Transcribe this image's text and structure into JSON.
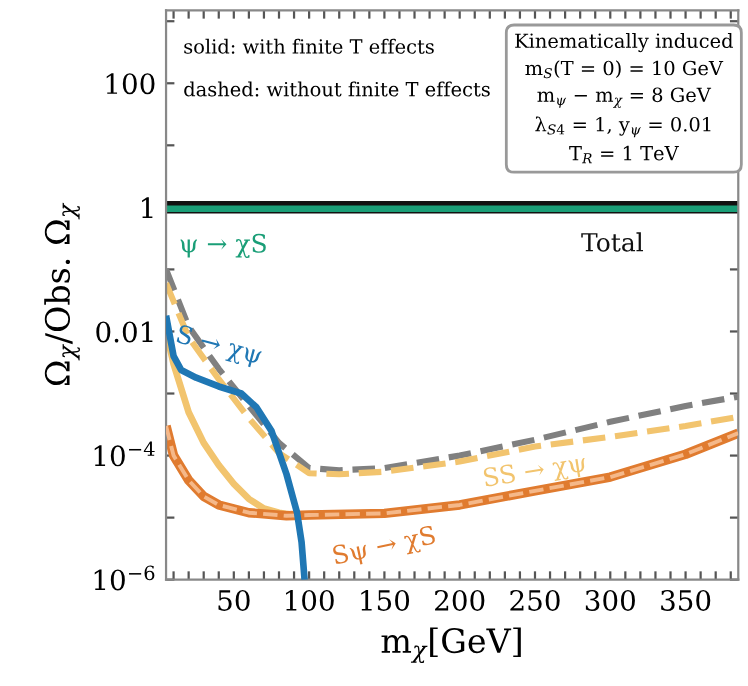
{
  "chart_data": {
    "type": "line",
    "xlabel": "m$_{χ}$[GeV]",
    "ylabel": "Ω$_{χ}$/Obs. Ω$_{χ}$",
    "log": "y",
    "xlim": [
      5,
      385
    ],
    "ylim": [
      1e-06,
      1500
    ],
    "xticks": [
      {
        "value": 10,
        "label": null
      },
      {
        "value": 20,
        "label": null
      },
      {
        "value": 30,
        "label": null
      },
      {
        "value": 40,
        "label": null
      },
      50,
      {
        "value": 60,
        "label": null
      },
      {
        "value": 70,
        "label": null
      },
      {
        "value": 80,
        "label": null
      },
      {
        "value": 90,
        "label": null
      },
      100,
      {
        "value": 110,
        "label": null
      },
      {
        "value": 120,
        "label": null
      },
      {
        "value": 130,
        "label": null
      },
      {
        "value": 140,
        "label": null
      },
      150,
      {
        "value": 160,
        "label": null
      },
      {
        "value": 170,
        "label": null
      },
      {
        "value": 180,
        "label": null
      },
      {
        "value": 190,
        "label": null
      },
      200,
      {
        "value": 210,
        "label": null
      },
      {
        "value": 220,
        "label": null
      },
      {
        "value": 230,
        "label": null
      },
      {
        "value": 240,
        "label": null
      },
      250,
      {
        "value": 260,
        "label": null
      },
      {
        "value": 270,
        "label": null
      },
      {
        "value": 280,
        "label": null
      },
      {
        "value": 290,
        "label": null
      },
      300,
      {
        "value": 310,
        "label": null
      },
      {
        "value": 320,
        "label": null
      },
      {
        "value": 330,
        "label": null
      },
      {
        "value": 340,
        "label": null
      },
      350,
      {
        "value": 360,
        "label": null
      },
      {
        "value": 370,
        "label": null
      },
      {
        "value": 380,
        "label": null
      }
    ],
    "yticks": [
      {
        "value": 1e-06,
        "label": "10$^{−6}$"
      },
      {
        "value": 1e-05,
        "label": null
      },
      {
        "value": 0.0001,
        "label": "10$^{−4}$"
      },
      {
        "value": 0.001,
        "label": null
      },
      {
        "value": 0.01,
        "label": "0.01"
      },
      {
        "value": 0.1,
        "label": null
      },
      {
        "value": 1,
        "label": "1"
      },
      {
        "value": 10,
        "label": null
      },
      {
        "value": 100,
        "label": "100"
      },
      {
        "value": 1000,
        "label": null
      }
    ],
    "grid": false,
    "legend": false,
    "series": [
      {
        "name": "Total",
        "color": "#111111",
        "line_style": "solid",
        "x": [
          5,
          385
        ],
        "values": [
          1.0,
          1.0
        ]
      },
      {
        "name": "ψ → χS",
        "color": "#1a9e77",
        "line_style": "solid",
        "x": [
          5,
          385
        ],
        "values": [
          0.95,
          0.95
        ]
      },
      {
        "color": "#808080",
        "line_style": "dashed",
        "x": [
          5,
          20,
          40,
          60,
          80,
          100,
          120,
          150,
          200,
          250,
          300,
          350,
          385
        ],
        "values": [
          0.1,
          0.012,
          0.0025,
          0.00063,
          0.00016,
          6.3e-05,
          5.8e-05,
          6.3e-05,
          0.0001,
          0.00018,
          0.00035,
          0.00063,
          0.00089
        ]
      },
      {
        "name": "SS → χψ",
        "color": "#f2c46e",
        "line_style": "dashed",
        "x": [
          5,
          20,
          40,
          60,
          80,
          100,
          120,
          150,
          200,
          250,
          300,
          350,
          385
        ],
        "values": [
          0.06,
          0.008,
          0.0017,
          0.0004,
          0.00011,
          5.2e-05,
          5e-05,
          5.5e-05,
          8e-05,
          0.00014,
          0.0002,
          0.0003,
          0.00042
        ]
      },
      {
        "color": "#f2c46e",
        "line_style": "solid",
        "x": [
          5,
          10,
          20,
          30,
          40,
          50,
          60,
          70,
          80,
          90
        ],
        "values": [
          0.01,
          0.003,
          0.0005,
          0.00016,
          7e-05,
          3.5e-05,
          2e-05,
          1.4e-05,
          1.2e-05,
          1.1e-05
        ]
      },
      {
        "name": "Sψ → χS",
        "color": "#e07b2f",
        "line_style": "solid",
        "x": [
          5,
          10,
          20,
          30,
          40,
          60,
          85,
          100,
          150,
          200,
          250,
          300,
          350,
          385
        ],
        "values": [
          0.0003,
          0.0001,
          4e-05,
          2.2e-05,
          1.6e-05,
          1.2e-05,
          1.07e-05,
          1.1e-05,
          1.17e-05,
          1.6e-05,
          2.7e-05,
          4.5e-05,
          0.000105,
          0.00023
        ]
      },
      {
        "color": "#f5b889",
        "line_style": "dashed",
        "x": [
          5,
          10,
          20,
          30,
          40,
          60,
          85,
          100,
          150,
          200,
          250,
          300,
          350,
          385
        ],
        "values": [
          0.0003,
          0.0001,
          4e-05,
          2.2e-05,
          1.6e-05,
          1.2e-05,
          1.07e-05,
          1.1e-05,
          1.17e-05,
          1.6e-05,
          2.7e-05,
          4.5e-05,
          0.000105,
          0.00023
        ]
      },
      {
        "name": "S → χψ",
        "color": "#1f77b4",
        "line_style": "solid",
        "x": [
          5,
          10,
          15,
          25,
          40,
          55,
          65,
          75,
          85,
          92,
          95,
          97
        ],
        "values": [
          0.018,
          0.004,
          0.0024,
          0.0018,
          0.0013,
          0.001,
          0.0006,
          0.00025,
          5e-05,
          1.2e-05,
          4e-06,
          1e-06
        ]
      }
    ],
    "annotations": [
      "solid: with finite T effects",
      "dashed: without finite T effects",
      "Kinematically induced\nm$_{S}$(T = 0) = 10 GeV\nm$_{ψ}$ − m$_{χ}$ = 8 GeV\nλ$_{S4}$ = 1, y$_{ψ}$ = 0.01\nT$_{R}$ = 1 TeV"
    ]
  }
}
